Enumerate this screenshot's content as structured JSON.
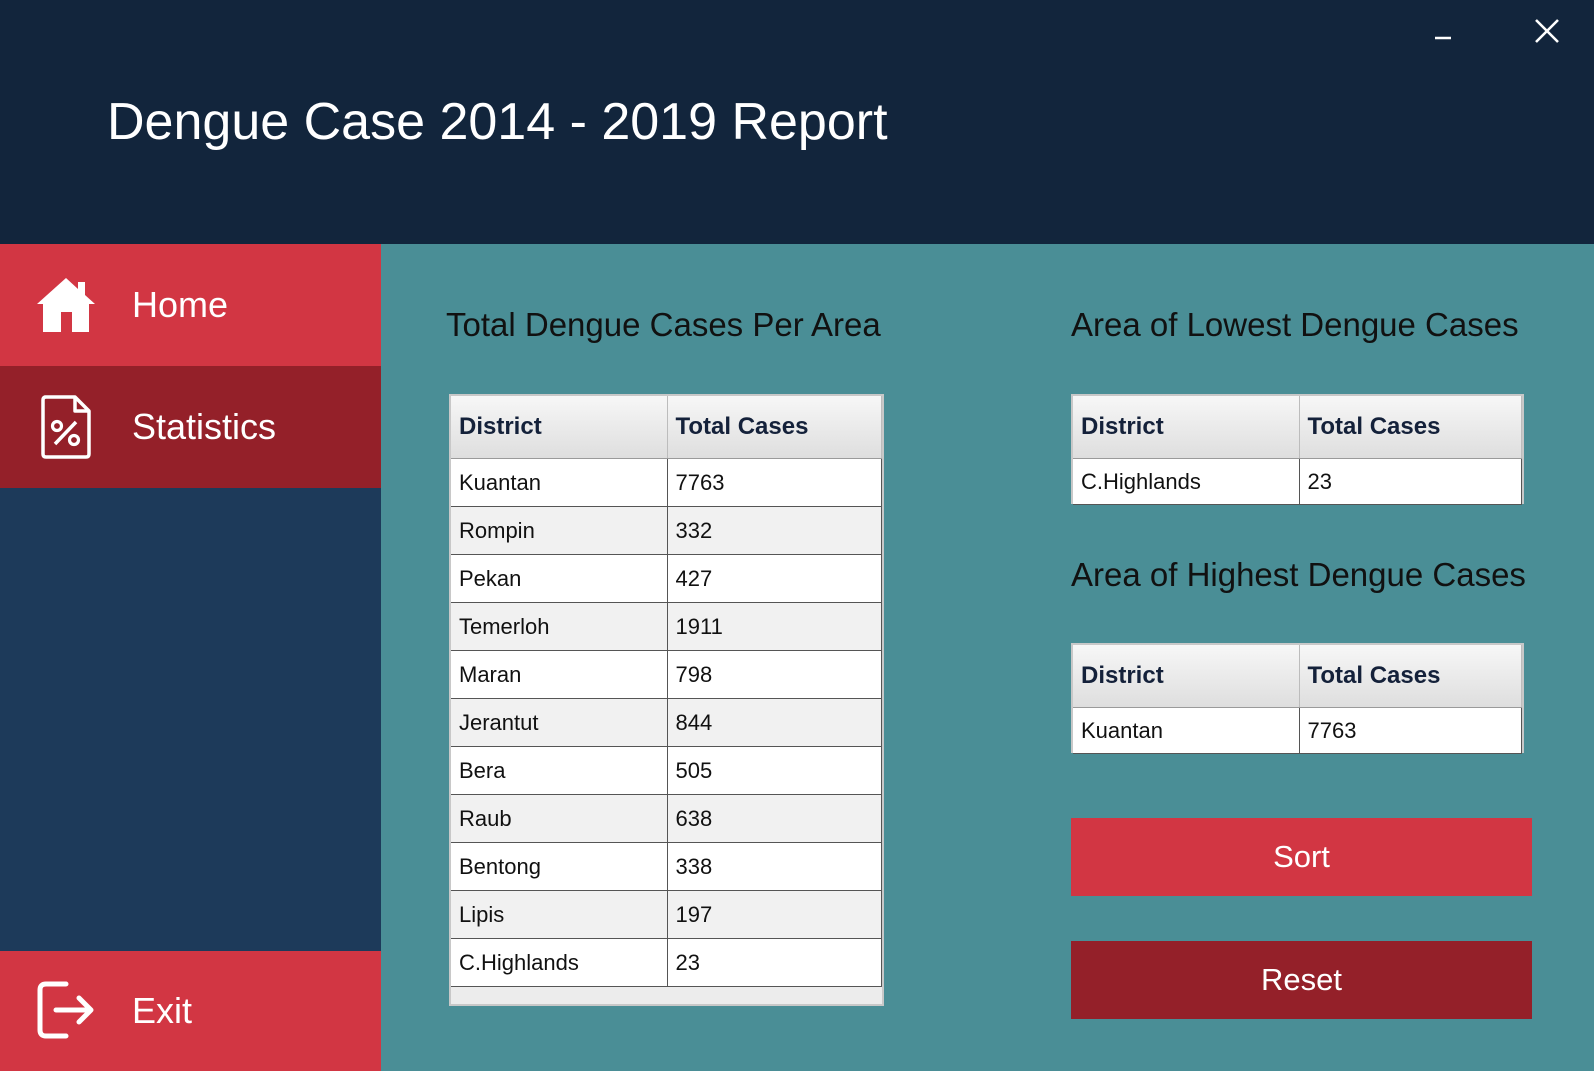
{
  "app": {
    "title": "Dengue Case 2014 - 2019 Report"
  },
  "window_controls": {
    "minimize": "_",
    "close": "✕"
  },
  "sidebar": {
    "items": [
      {
        "label": "Home",
        "icon": "home-icon"
      },
      {
        "label": "Statistics",
        "icon": "percent-document-icon"
      },
      {
        "label": "Exit",
        "icon": "exit-icon"
      }
    ]
  },
  "main_table": {
    "title": "Total Dengue Cases Per Area",
    "columns": [
      "District",
      "Total Cases"
    ],
    "rows": [
      [
        "Kuantan",
        "7763"
      ],
      [
        "Rompin",
        "332"
      ],
      [
        "Pekan",
        "427"
      ],
      [
        "Temerloh",
        "1911"
      ],
      [
        "Maran",
        "798"
      ],
      [
        "Jerantut",
        "844"
      ],
      [
        "Bera",
        "505"
      ],
      [
        "Raub",
        "638"
      ],
      [
        "Bentong",
        "338"
      ],
      [
        "Lipis",
        "197"
      ],
      [
        "C.Highlands",
        "23"
      ]
    ]
  },
  "lowest": {
    "title": "Area of Lowest Dengue Cases",
    "columns": [
      "District",
      "Total Cases"
    ],
    "rows": [
      [
        "C.Highlands",
        "23"
      ]
    ]
  },
  "highest": {
    "title": "Area of Highest Dengue Cases",
    "columns": [
      "District",
      "Total Cases"
    ],
    "rows": [
      [
        "Kuantan",
        "7763"
      ]
    ]
  },
  "buttons": {
    "sort": "Sort",
    "reset": "Reset"
  },
  "colors": {
    "header_bg": "#12253c",
    "sidebar_bg": "#1d3a5a",
    "content_bg": "#4a8e96",
    "accent_red": "#d23643",
    "accent_dark_red": "#942029"
  }
}
